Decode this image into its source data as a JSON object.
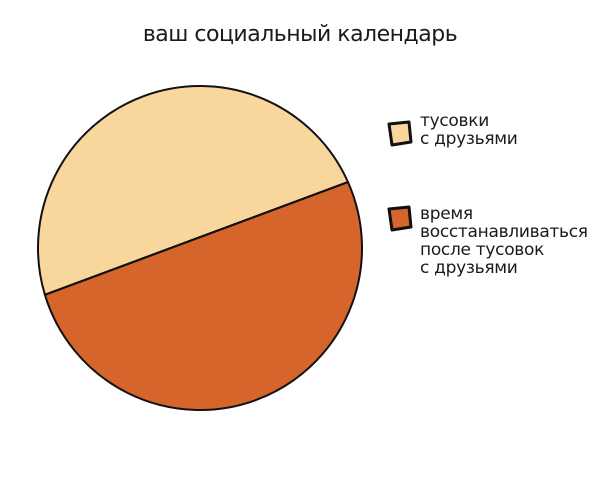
{
  "chart_data": {
    "type": "pie",
    "title": "ваш социальный календарь",
    "slices": [
      {
        "label": "тусовки с друзьями",
        "value": 48,
        "color": "#F9D69B"
      },
      {
        "label": "время восстанавливаться после тусовок с друзьями",
        "value": 52,
        "color": "#D5652A"
      }
    ],
    "legend_position": "right"
  },
  "legend": {
    "item0": "тусовки\nс друзьями",
    "item1": "время\nвосстанавливаться\nпосле тусовок\nс друзьями"
  }
}
